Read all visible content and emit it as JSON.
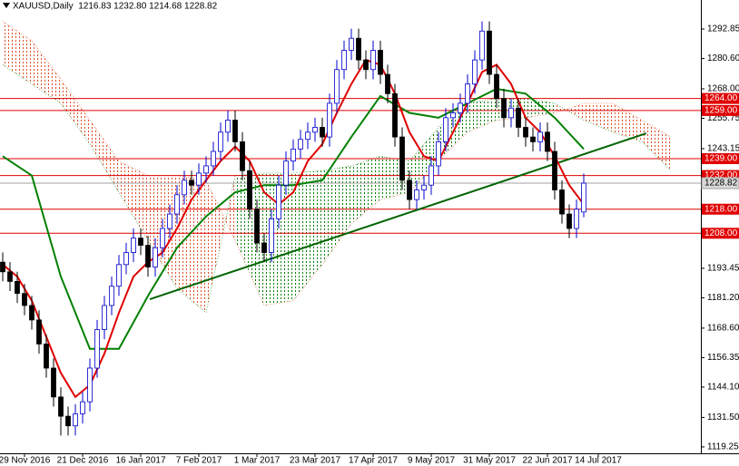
{
  "chart_data": {
    "type": "candlestick",
    "title": "XAUUSD,Daily  1216.83 1232.80 1214.68 1228.82",
    "xlim": [
      -3.375,
      93.125
    ],
    "ylim": [
      1116.6,
      1304.9
    ],
    "xticks": [
      {
        "value": 0,
        "label": "29 Nov 2016"
      },
      {
        "value": 8,
        "label": "21 Dec 2016"
      },
      {
        "value": 16,
        "label": "16 Jan 2017"
      },
      {
        "value": 24,
        "label": "7 Feb 2017"
      },
      {
        "value": 32,
        "label": "1 Mar 2017"
      },
      {
        "value": 40,
        "label": "23 Mar 2017"
      },
      {
        "value": 48,
        "label": "17 Apr 2017"
      },
      {
        "value": 56,
        "label": "9 May 2017"
      },
      {
        "value": 64,
        "label": "31 May 2017"
      },
      {
        "value": 72,
        "label": "22 Jun 2017"
      },
      {
        "value": 79,
        "label": "14 Jul 2017"
      }
    ],
    "yticks": [
      1292.85,
      {
        "value": 1280.6,
        "label": "1280.60"
      },
      {
        "value": 1268,
        "label": "1268.00"
      },
      1255.75,
      1243.15,
      1193.45,
      {
        "value": 1181.2,
        "label": "1181.20"
      },
      {
        "value": 1168.6,
        "label": "1168.60"
      },
      1156.35,
      {
        "value": 1144.1,
        "label": "1144.10"
      },
      {
        "value": 1131.5,
        "label": "1131.50"
      },
      1119.25
    ],
    "up_color": "#0000cc",
    "down_color": "#000000",
    "candles": {
      "x": [
        -3,
        -2,
        -1,
        0,
        1,
        2,
        3,
        4,
        5,
        6,
        7,
        8,
        9,
        10,
        11,
        12,
        13,
        14,
        15,
        16,
        17,
        18,
        19,
        20,
        21,
        22,
        23,
        24,
        25,
        26,
        27,
        28,
        29,
        30,
        31,
        32,
        33,
        34,
        35,
        36,
        37,
        38,
        39,
        40,
        41,
        42,
        43,
        44,
        45,
        46,
        47,
        48,
        49,
        50,
        51,
        52,
        53,
        54,
        55,
        56,
        57,
        58,
        59,
        60,
        61,
        62,
        63,
        64,
        65,
        66,
        67,
        68,
        69,
        70,
        71,
        72,
        73,
        74,
        75,
        76,
        77
      ],
      "open": [
        1196,
        1192,
        1188,
        1183,
        1178,
        1172,
        1162,
        1152,
        1140,
        1132,
        1128,
        1133,
        1138,
        1152,
        1168,
        1178,
        1186,
        1195,
        1200,
        1206,
        1203,
        1194,
        1202,
        1210,
        1216,
        1224,
        1230,
        1228,
        1233,
        1236,
        1242,
        1250,
        1255,
        1246,
        1234,
        1218,
        1204,
        1200,
        1214,
        1228,
        1238,
        1243,
        1247,
        1250,
        1252,
        1248,
        1262,
        1276,
        1284,
        1289,
        1280,
        1276,
        1284,
        1274,
        1266,
        1248,
        1230,
        1222,
        1226,
        1228,
        1236,
        1246,
        1256,
        1258,
        1262,
        1270,
        1280,
        1292,
        1274,
        1264,
        1256,
        1260,
        1252,
        1248,
        1246,
        1250,
        1242,
        1226,
        1216,
        1210,
        1216.83
      ],
      "high": [
        1200,
        1196,
        1192,
        1187,
        1182,
        1176,
        1166,
        1156,
        1144,
        1136,
        1137,
        1142,
        1156,
        1172,
        1182,
        1190,
        1199,
        1204,
        1210,
        1210,
        1207,
        1206,
        1214,
        1220,
        1228,
        1234,
        1234,
        1237,
        1240,
        1246,
        1254,
        1259,
        1259,
        1250,
        1238,
        1222,
        1208,
        1218,
        1232,
        1242,
        1247,
        1251,
        1254,
        1256,
        1256,
        1266,
        1280,
        1288,
        1293,
        1293,
        1284,
        1288,
        1288,
        1278,
        1270,
        1252,
        1234,
        1230,
        1232,
        1240,
        1250,
        1260,
        1262,
        1266,
        1274,
        1284,
        1296,
        1296,
        1278,
        1268,
        1264,
        1264,
        1256,
        1252,
        1254,
        1254,
        1246,
        1230,
        1220,
        1222,
        1232.8
      ],
      "low": [
        1188,
        1184,
        1179,
        1174,
        1168,
        1158,
        1148,
        1136,
        1124,
        1124,
        1124,
        1129,
        1134,
        1148,
        1164,
        1174,
        1182,
        1191,
        1196,
        1199,
        1190,
        1190,
        1198,
        1206,
        1212,
        1220,
        1224,
        1224,
        1229,
        1232,
        1238,
        1246,
        1242,
        1230,
        1214,
        1200,
        1196,
        1196,
        1210,
        1224,
        1234,
        1239,
        1243,
        1246,
        1244,
        1244,
        1258,
        1272,
        1280,
        1276,
        1272,
        1272,
        1270,
        1262,
        1244,
        1226,
        1218,
        1218,
        1222,
        1224,
        1232,
        1242,
        1252,
        1254,
        1258,
        1266,
        1276,
        1270,
        1260,
        1252,
        1252,
        1248,
        1244,
        1242,
        1242,
        1238,
        1222,
        1212,
        1206,
        1206,
        1214.68
      ],
      "close": [
        1192,
        1188,
        1183,
        1178,
        1172,
        1162,
        1152,
        1140,
        1132,
        1128,
        1133,
        1138,
        1152,
        1168,
        1178,
        1186,
        1195,
        1200,
        1206,
        1203,
        1194,
        1202,
        1210,
        1216,
        1224,
        1230,
        1228,
        1233,
        1236,
        1242,
        1250,
        1255,
        1246,
        1234,
        1218,
        1204,
        1200,
        1214,
        1228,
        1238,
        1243,
        1247,
        1250,
        1252,
        1248,
        1262,
        1276,
        1284,
        1289,
        1280,
        1276,
        1284,
        1274,
        1266,
        1248,
        1230,
        1222,
        1226,
        1228,
        1236,
        1246,
        1256,
        1258,
        1262,
        1270,
        1280,
        1292,
        1274,
        1264,
        1256,
        1260,
        1252,
        1248,
        1246,
        1250,
        1242,
        1226,
        1216,
        1210,
        1218,
        1228.82
      ]
    },
    "cloud": {
      "x": [
        -3,
        1,
        5,
        9,
        13,
        17,
        21,
        25,
        29,
        33,
        37,
        41,
        45,
        49,
        53,
        57,
        61,
        65,
        69,
        73,
        77,
        81,
        85,
        89
      ],
      "span_a": [
        1278,
        1270,
        1262,
        1245,
        1225,
        1205,
        1185,
        1175,
        1232,
        1233,
        1233,
        1234,
        1236,
        1240,
        1238,
        1252,
        1262,
        1264,
        1264,
        1262,
        1255,
        1250,
        1246,
        1234
      ],
      "span_b": [
        1296,
        1288,
        1272,
        1255,
        1238,
        1232,
        1232,
        1230,
        1205,
        1178,
        1180,
        1195,
        1212,
        1222,
        1225,
        1238,
        1250,
        1255,
        1256,
        1258,
        1262,
        1262,
        1255,
        1248
      ],
      "up_color": "#008000",
      "down_color": "#e0502a"
    },
    "series": [
      {
        "color": "#008000",
        "x": [
          -3,
          1,
          5,
          9,
          13,
          17,
          21,
          25,
          29,
          33,
          37,
          41,
          45,
          49,
          53,
          57,
          61,
          65,
          69,
          73,
          77
        ],
        "values": [
          1240,
          1232,
          1190,
          1160,
          1160,
          1182,
          1202,
          1215,
          1225,
          1228,
          1228,
          1230,
          1248,
          1265,
          1258,
          1256,
          1262,
          1268,
          1266,
          1256,
          1243
        ]
      },
      {
        "color": "#e00000",
        "x": [
          -3,
          -1,
          1,
          3,
          5,
          7,
          9,
          11,
          13,
          15,
          17,
          19,
          21,
          23,
          25,
          27,
          29,
          31,
          33,
          35,
          37,
          39,
          41,
          43,
          45,
          47,
          49,
          51,
          53,
          55,
          57,
          59,
          61,
          63,
          65,
          67,
          69,
          71,
          73,
          75,
          77
        ],
        "values": [
          1195,
          1190,
          1180,
          1165,
          1150,
          1140,
          1145,
          1158,
          1175,
          1190,
          1196,
          1200,
          1210,
          1222,
          1230,
          1238,
          1244,
          1238,
          1225,
          1220,
          1225,
          1238,
          1245,
          1258,
          1270,
          1280,
          1278,
          1266,
          1250,
          1240,
          1238,
          1250,
          1262,
          1275,
          1278,
          1270,
          1256,
          1250,
          1240,
          1228,
          1220
        ]
      }
    ],
    "trendline": {
      "color": "#006400",
      "x": [
        17.25,
        85.6
      ],
      "values": [
        1180.6,
        1249.5
      ]
    },
    "levels": [
      {
        "value": 1264,
        "label": "1264.00"
      },
      {
        "value": 1259,
        "label": "1259.00"
      },
      {
        "value": 1239,
        "label": "1239.00"
      },
      {
        "value": 1232,
        "label": "1232.00"
      },
      {
        "value": 1218,
        "label": "1218.00"
      },
      {
        "value": 1208,
        "label": "1208.00"
      }
    ],
    "level_color": "#e00000",
    "current_price": 1228.82,
    "current_color": "#a0a0a0"
  }
}
